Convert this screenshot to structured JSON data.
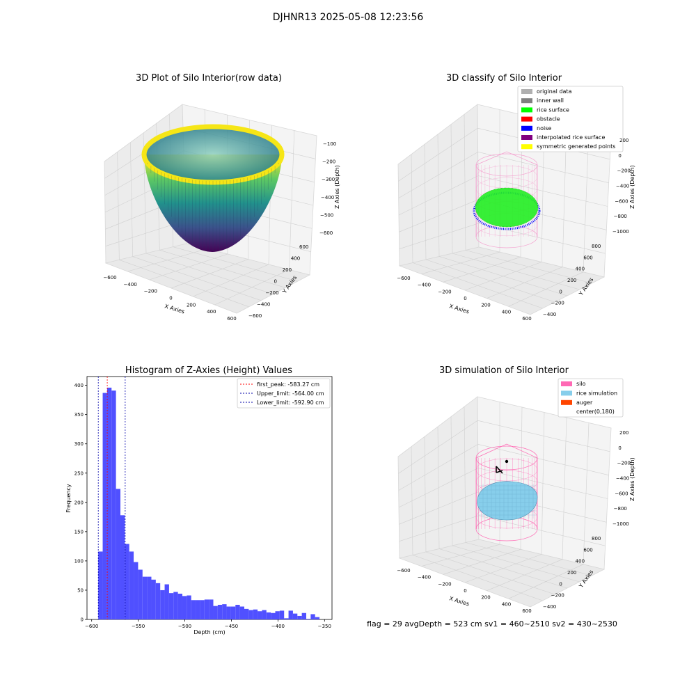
{
  "suptitle": "DJHNR13 2025-05-08 12:23:56",
  "panels": {
    "raw": {
      "title": "3D Plot of Silo Interior(row data)",
      "xlabel": "X Axies",
      "ylabel": "Y Axies",
      "zlabel": "Z Axies (Depth)",
      "xticks": [
        "−600",
        "−400",
        "−200",
        "0",
        "200",
        "400",
        "600"
      ],
      "yticks": [
        "−600",
        "−400",
        "−200",
        "0",
        "200",
        "400",
        "600"
      ],
      "zticks": [
        "−100",
        "−200",
        "−300",
        "−400",
        "−500",
        "−600"
      ]
    },
    "classify": {
      "title": "3D classify of Silo Interior",
      "xlabel": "X Axies",
      "ylabel": "Y Axies",
      "zlabel": "Z Axies (Depth)",
      "xticks": [
        "−600",
        "−400",
        "−200",
        "0",
        "200",
        "400",
        "600"
      ],
      "yticks": [
        "−400",
        "−200",
        "0",
        "200",
        "400",
        "600",
        "800"
      ],
      "zticks": [
        "200",
        "0",
        "−200",
        "−400",
        "−600",
        "−800",
        "−1000"
      ],
      "legend": [
        {
          "label": "original data",
          "color": "#b0b0b0"
        },
        {
          "label": "inner wall",
          "color": "#808080"
        },
        {
          "label": "rice surface",
          "color": "#00ff00"
        },
        {
          "label": "obstacle",
          "color": "#ff0000"
        },
        {
          "label": "noise",
          "color": "#0000ff"
        },
        {
          "label": "interpolated rice surface",
          "color": "#800080"
        },
        {
          "label": "symmetric generated points",
          "color": "#ffff00"
        }
      ]
    },
    "simulation": {
      "title": "3D simulation of Silo Interior",
      "xlabel": "X Axies",
      "ylabel": "Y Axies",
      "zlabel": "Z Axies (Depth)",
      "xticks": [
        "−600",
        "−400",
        "−200",
        "0",
        "200",
        "400",
        "600"
      ],
      "yticks": [
        "−400",
        "−200",
        "0",
        "200",
        "400",
        "600",
        "800"
      ],
      "zticks": [
        "200",
        "0",
        "−200",
        "−400",
        "−600",
        "−800",
        "−1000"
      ],
      "legend": [
        {
          "label": "silo",
          "color": "#ff69b4"
        },
        {
          "label": "rice simulation",
          "color": "#87ceeb"
        },
        {
          "label": "auger",
          "color": "#ff4500"
        },
        {
          "label": "center(0,180)",
          "color": ""
        }
      ],
      "footer": "flag = 29  avgDepth = 523 cm  sv1 = 460~2510  sv2 = 430~2530"
    }
  },
  "chart_data": [
    {
      "type": "histogram",
      "title": "Histogram of Z-Axies (Height) Values",
      "xlabel": "Depth (cm)",
      "ylabel": "Frequency",
      "xlim": [
        -605,
        -342
      ],
      "ylim": [
        0,
        415
      ],
      "xticks": [
        -600,
        -550,
        -500,
        -450,
        -400,
        -350
      ],
      "yticks": [
        0,
        50,
        100,
        150,
        200,
        250,
        300,
        350,
        400
      ],
      "bar_color": "#5050ff",
      "bin_start": -592.9,
      "bin_width": 4.75,
      "counts": [
        116,
        387,
        396,
        391,
        223,
        178,
        129,
        116,
        98,
        85,
        73,
        73,
        68,
        62,
        50,
        60,
        45,
        47,
        44,
        40,
        41,
        33,
        33,
        33,
        34,
        34,
        23,
        25,
        26,
        22,
        22,
        25,
        22,
        18,
        16,
        17,
        14,
        16,
        12,
        11,
        14,
        15,
        2,
        15,
        10,
        6,
        11,
        1,
        9,
        4
      ],
      "vlines": [
        {
          "label": "first_peak: -583.27 cm",
          "x": -583.27,
          "color": "#ff0000"
        },
        {
          "label": "Upper_limit: -564.00 cm",
          "x": -564.0,
          "color": "#0000aa"
        },
        {
          "label": "Lower_limit: -592.90 cm",
          "x": -592.9,
          "color": "#0000aa"
        }
      ]
    }
  ]
}
